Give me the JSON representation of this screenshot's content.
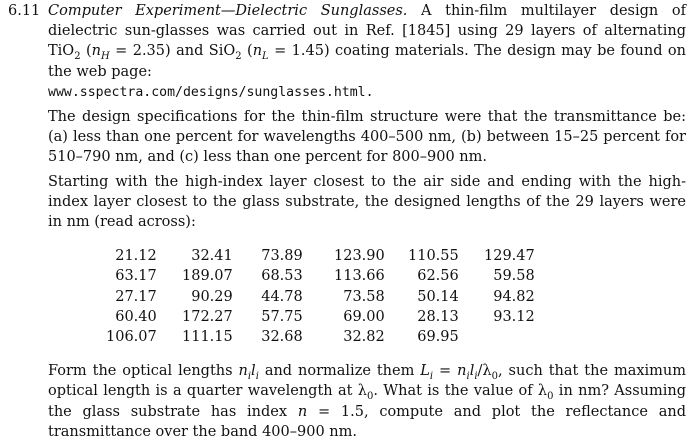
{
  "exercise": {
    "number": "6.11",
    "title": "Computer Experiment—Dielectric Sunglasses.",
    "p1_text_a": " A thin-film multilayer design of dielectric sun-glasses was carried out in Ref. [1845] using 29 layers of alternating TiO",
    "p1_sub_2": "2",
    "p1_text_b": " (",
    "p1_nH": "n",
    "p1_nH_sub": "H",
    "p1_text_c": " = 2.35) and SiO",
    "p1_sub_2b": "2",
    "p1_text_d": " (",
    "p1_nL": "n",
    "p1_nL_sub": "L",
    "p1_text_e": " = 1.45) coating materials. The design may be found on the web page:",
    "url": "www.sspectra.com/designs/sunglasses.html.",
    "p2": "The design specifications for the thin-film structure were that the transmittance be: (a) less than one percent for wavelengths 400–500 nm, (b) between 15–25 percent for 510–790 nm, and (c) less than one percent for 800–900 nm.",
    "p3": "Starting with the high-index layer closest to the air side and ending with the high-index layer closest to the glass substrate, the designed lengths of the 29 layers were in nm (read across):",
    "layers": [
      [
        "21.12",
        "32.41",
        "73.89",
        "123.90",
        "110.55",
        "129.47"
      ],
      [
        "63.17",
        "189.07",
        "68.53",
        "113.66",
        "62.56",
        "59.58"
      ],
      [
        "27.17",
        "90.29",
        "44.78",
        "73.58",
        "50.14",
        "94.82"
      ],
      [
        "60.40",
        "172.27",
        "57.75",
        "69.00",
        "28.13",
        "93.12"
      ],
      [
        "106.07",
        "111.15",
        "32.68",
        "32.82",
        "69.95",
        ""
      ]
    ],
    "p4_a": "Form the optical lengths ",
    "p4_nl": "n",
    "p4_i1": "i",
    "p4_l": "l",
    "p4_i2": "i",
    "p4_b": " and normalize them ",
    "p4_L": "L",
    "p4_i3": "i",
    "p4_c": " = ",
    "p4_expr": "n",
    "p4_i4": "i",
    "p4_l2": "l",
    "p4_i5": "i",
    "p4_d": "/λ",
    "p4_zero": "0",
    "p4_e": ", such that the maximum optical length is a quarter wavelength at λ",
    "p4_zero2": "0",
    "p4_f": ". What is the value of λ",
    "p4_zero3": "0",
    "p4_g": " in nm? Assuming the glass substrate has index ",
    "p4_n": "n",
    "p4_h": " = 1.5, compute and plot the reflectance and transmittance over the band 400–900 nm."
  }
}
